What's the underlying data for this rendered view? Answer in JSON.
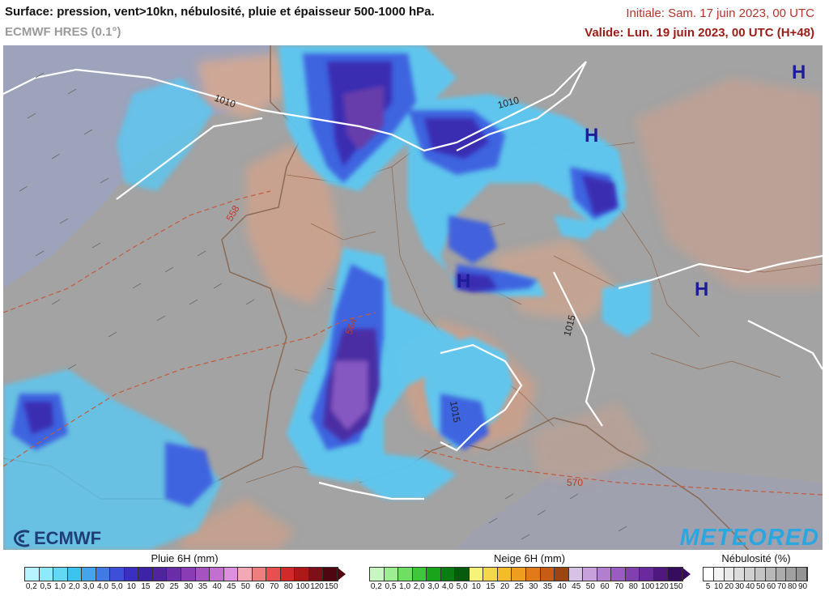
{
  "header": {
    "title": "Surface: pression, vent>10kn, nébulosité, pluie et épaisseur 500-1000 hPa.",
    "model": "ECMWF HRES (0.1°)",
    "initiale": "Initiale: Sam. 17 juin 2023, 00 UTC",
    "valide": "Valide: Lun. 19 juin 2023, 00 UTC (H+48)"
  },
  "map": {
    "pressure_centers": [
      "H",
      "H",
      "H",
      "H"
    ],
    "isobar_labels": [
      "1010",
      "1010",
      "1015",
      "1015"
    ],
    "thickness_labels": [
      "558",
      "564",
      "570"
    ]
  },
  "logos": {
    "left": "ECMWF",
    "right": "METEORED"
  },
  "legends": {
    "rain": {
      "title": "Pluie 6H (mm)",
      "ticks": [
        "0,2",
        "0,5",
        "1,0",
        "2,0",
        "3,0",
        "4,0",
        "5,0",
        "10",
        "15",
        "20",
        "25",
        "30",
        "35",
        "40",
        "45",
        "50",
        "60",
        "70",
        "80",
        "100",
        "120",
        "150"
      ],
      "colors": [
        "#b6f4ff",
        "#8de9fb",
        "#62d8f4",
        "#3cc4ef",
        "#45a5ec",
        "#3f7ae6",
        "#3d4fd9",
        "#3a2fc0",
        "#3d23a6",
        "#52239e",
        "#6a2ca8",
        "#8a3cb5",
        "#a653c2",
        "#c26fd0",
        "#dd90dd",
        "#f2a9b3",
        "#ef7f7f",
        "#e65050",
        "#d22a2a",
        "#ad1919",
        "#7d0f17",
        "#4f0610"
      ]
    },
    "snow": {
      "title": "Neige 6H (mm)",
      "ticks": [
        "0,2",
        "0,5",
        "1,0",
        "2,0",
        "3,0",
        "4,0",
        "5,0",
        "10",
        "15",
        "20",
        "25",
        "30",
        "35",
        "40",
        "45",
        "50",
        "60",
        "70",
        "80",
        "100",
        "120",
        "150"
      ],
      "colors": [
        "#c8f6c0",
        "#9dee93",
        "#6fdf63",
        "#3ec73a",
        "#19a51b",
        "#0a7d12",
        "#065c0d",
        "#f8f27a",
        "#f5d84a",
        "#f4bb2b",
        "#ef9d1f",
        "#e37a18",
        "#c85c14",
        "#9d4512",
        "#d7c2e6",
        "#c6a1da",
        "#b27fce",
        "#9a5cc0",
        "#8040b0",
        "#6a2a9e",
        "#50187f",
        "#350c5e"
      ]
    },
    "cloud": {
      "title": "Nébulosité (%)",
      "ticks": [
        "5",
        "10",
        "20",
        "30",
        "40",
        "50",
        "60",
        "70",
        "80",
        "90"
      ],
      "colors": [
        "#ffffff",
        "#f4f4f4",
        "#e8e8e8",
        "#dcdcdc",
        "#d0d0d0",
        "#c4c4c4",
        "#b8b8b8",
        "#acacac",
        "#a0a0a0",
        "#949494"
      ]
    }
  }
}
